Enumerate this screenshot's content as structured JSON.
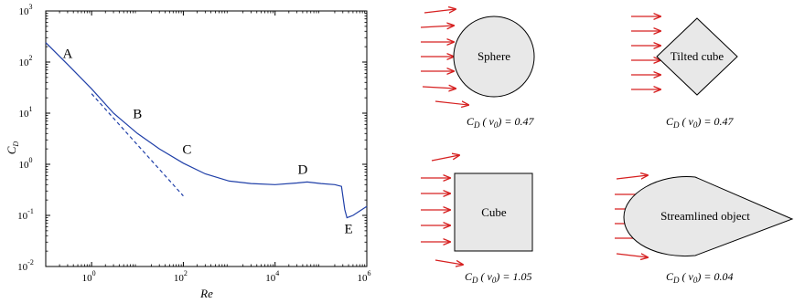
{
  "chart_data": {
    "type": "line",
    "xlabel": "Re",
    "ylabel": "C",
    "ylabel_subscript": "D",
    "xscale": "log",
    "yscale": "log",
    "xlim": [
      0.1,
      1000000
    ],
    "ylim": [
      0.01,
      1000
    ],
    "x_ticks": [
      {
        "base": "10",
        "exp": "0",
        "value": 1
      },
      {
        "base": "10",
        "exp": "2",
        "value": 100
      },
      {
        "base": "10",
        "exp": "4",
        "value": 10000
      },
      {
        "base": "10",
        "exp": "6",
        "value": 1000000
      }
    ],
    "y_ticks": [
      {
        "base": "10",
        "exp": "-2",
        "value": 0.01
      },
      {
        "base": "10",
        "exp": "-1",
        "value": 0.1
      },
      {
        "base": "10",
        "exp": "0",
        "value": 1
      },
      {
        "base": "10",
        "exp": "1",
        "value": 10
      },
      {
        "base": "10",
        "exp": "2",
        "value": 100
      },
      {
        "base": "10",
        "exp": "3",
        "value": 1000
      }
    ],
    "grid": false,
    "series": [
      {
        "style": "solid",
        "color": "#1f3fa8",
        "points": [
          [
            0.1,
            240
          ],
          [
            0.3,
            90
          ],
          [
            1,
            30
          ],
          [
            3,
            10
          ],
          [
            10,
            4
          ],
          [
            30,
            2
          ],
          [
            100,
            1.05
          ],
          [
            300,
            0.65
          ],
          [
            1000,
            0.47
          ],
          [
            3000,
            0.42
          ],
          [
            10000,
            0.4
          ],
          [
            30000,
            0.43
          ],
          [
            50000,
            0.45
          ],
          [
            100000,
            0.42
          ],
          [
            200000,
            0.4
          ],
          [
            280000,
            0.37
          ],
          [
            330000,
            0.13
          ],
          [
            370000,
            0.09
          ],
          [
            500000,
            0.1
          ],
          [
            1000000,
            0.15
          ]
        ]
      },
      {
        "style": "dashed",
        "color": "#1f3fa8",
        "points": [
          [
            1,
            24
          ],
          [
            100,
            0.24
          ]
        ]
      }
    ],
    "annotations": [
      {
        "text": "A",
        "x": 0.3,
        "y": 120
      },
      {
        "text": "B",
        "x": 10,
        "y": 8
      },
      {
        "text": "C",
        "x": 120,
        "y": 1.6
      },
      {
        "text": "D",
        "x": 40000,
        "y": 0.65
      },
      {
        "text": "E",
        "x": 400000,
        "y": 0.045
      }
    ]
  },
  "shapes": [
    {
      "label": "Sphere",
      "cd_text": "C",
      "cd_sub": "D",
      "cd_mid": " ( v",
      "cd_sub2": "0",
      "cd_end": ") = 0.47"
    },
    {
      "label": "Tilted cube",
      "cd_text": "C",
      "cd_sub": "D",
      "cd_mid": " ( v",
      "cd_sub2": "0",
      "cd_end": ") = 0.47"
    },
    {
      "label": "Cube",
      "cd_text": "C",
      "cd_sub": "D",
      "cd_mid": " ( v",
      "cd_sub2": "0",
      "cd_end": ") = 1.05"
    },
    {
      "label": "Streamlined object",
      "cd_text": "C",
      "cd_sub": "D",
      "cd_mid": " ( v",
      "cd_sub2": "0",
      "cd_end": ") = 0.04"
    }
  ],
  "colors": {
    "curve": "#1f3fa8",
    "arrow": "#d62020",
    "shape_fill": "#e8e8e8"
  }
}
